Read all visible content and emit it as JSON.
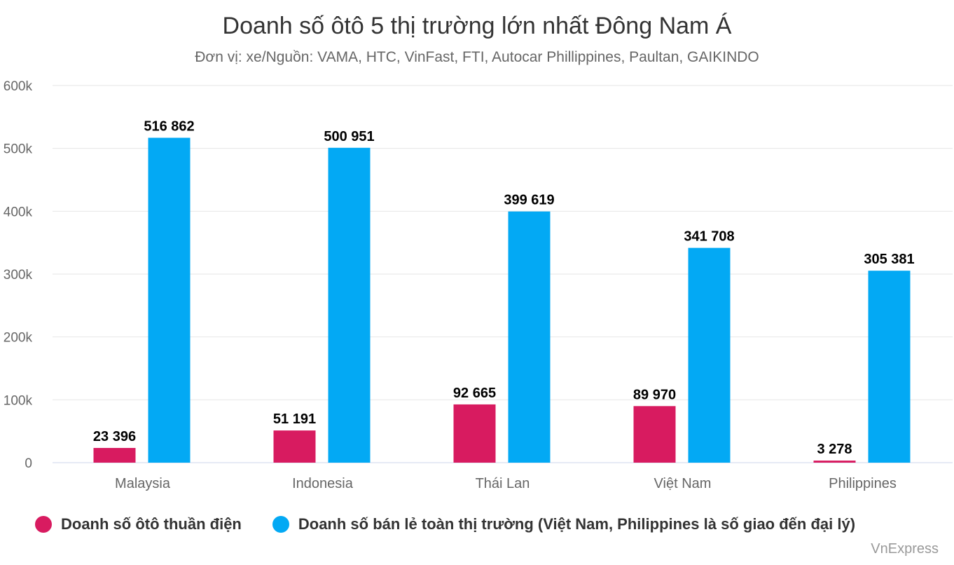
{
  "colors": {
    "series0": "#d81b60",
    "series1": "#03a9f4",
    "grid": "#e6e6e6",
    "axis": "#ccd6eb"
  },
  "chart_data": {
    "type": "bar",
    "title": "Doanh số ôtô 5 thị trường lớn nhất Đông Nam Á",
    "subtitle": "Đơn vị: xe/Nguồn: VAMA, HTC, VinFast, FTI, Autocar Phillippines, Paultan, GAIKINDO",
    "categories": [
      "Malaysia",
      "Indonesia",
      "Thái Lan",
      "Việt Nam",
      "Philippines"
    ],
    "series": [
      {
        "name": "Doanh số ôtô thuần điện",
        "values": [
          23396,
          51191,
          92665,
          89970,
          3278
        ],
        "labels": [
          "23 396",
          "51 191",
          "92 665",
          "89 970",
          "3 278"
        ]
      },
      {
        "name": "Doanh số bán lẻ toàn thị trường (Việt Nam, Philippines là số giao đến đại lý)",
        "values": [
          516862,
          500951,
          399619,
          341708,
          305381
        ],
        "labels": [
          "516 862",
          "500 951",
          "399 619",
          "341 708",
          "305 381"
        ]
      }
    ],
    "y_ticks": [
      "0",
      "100k",
      "200k",
      "300k",
      "400k",
      "500k",
      "600k"
    ],
    "ylim": [
      0,
      600000
    ],
    "grid": true,
    "legend": "bottom-left"
  },
  "credit": "VnExpress"
}
